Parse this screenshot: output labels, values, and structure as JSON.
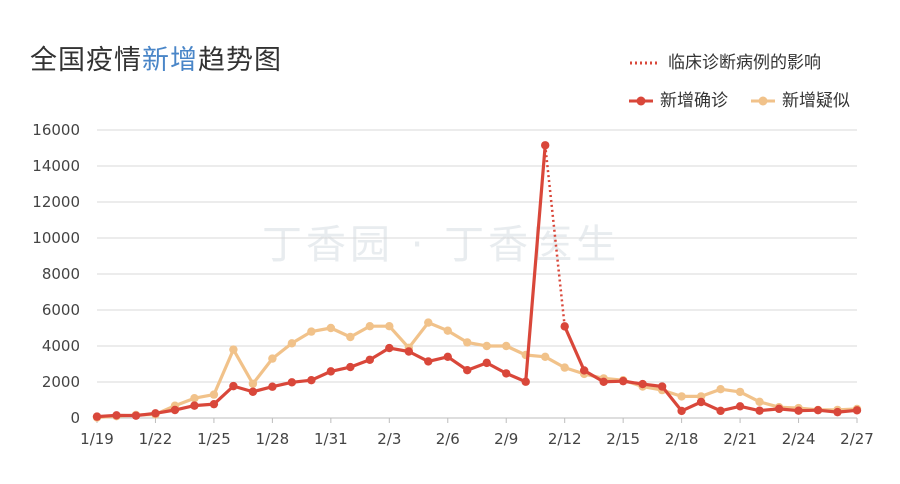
{
  "title_prefix": "全国疫情",
  "title_highlight": "新增",
  "title_suffix": "趋势图",
  "watermark": "丁香园 · 丁香医生",
  "colors": {
    "confirmed": "#d9473a",
    "suspected": "#f1c28a",
    "annotation": "#d9473a",
    "grid": "#d8d8d8",
    "title_highlight": "#4a86c8"
  },
  "chart_data": {
    "type": "line",
    "title": "全国疫情新增趋势图",
    "ylim": [
      0,
      16000
    ],
    "y_ticks": [
      "0",
      "2000",
      "4000",
      "6000",
      "8000",
      "10000",
      "12000",
      "14000",
      "16000"
    ],
    "x": [
      "1/19",
      "1/20",
      "1/21",
      "1/22",
      "1/23",
      "1/24",
      "1/25",
      "1/26",
      "1/27",
      "1/28",
      "1/29",
      "1/30",
      "1/31",
      "2/1",
      "2/2",
      "2/3",
      "2/4",
      "2/5",
      "2/6",
      "2/7",
      "2/8",
      "2/9",
      "2/10",
      "2/11",
      "2/12",
      "2/13",
      "2/14",
      "2/15",
      "2/16",
      "2/17",
      "2/18",
      "2/19",
      "2/20",
      "2/21",
      "2/22",
      "2/23",
      "2/24",
      "2/25",
      "2/26",
      "2/27"
    ],
    "x_tick_labels": [
      "1/19",
      "1/22",
      "1/25",
      "1/28",
      "1/31",
      "2/3",
      "2/6",
      "2/9",
      "2/12",
      "2/15",
      "2/18",
      "2/21",
      "2/24",
      "2/27"
    ],
    "legend_placement": "top-right",
    "series": [
      {
        "name": "新增确诊",
        "values": [
          77,
          149,
          131,
          259,
          444,
          688,
          769,
          1771,
          1459,
          1737,
          1982,
          2102,
          2590,
          2829,
          3235,
          3887,
          3694,
          3143,
          3399,
          2656,
          3062,
          2478,
          2015,
          15152,
          5090,
          2641,
          2009,
          2048,
          1886,
          1749,
          394,
          889,
          397,
          648,
          409,
          508,
          406,
          433,
          327,
          427
        ]
      },
      {
        "name": "新增疑似",
        "values": [
          27,
          100,
          167,
          200,
          680,
          1100,
          1300,
          3800,
          1900,
          3300,
          4150,
          4800,
          5000,
          4500,
          5100,
          5100,
          3900,
          5300,
          4850,
          4200,
          4000,
          4000,
          3500,
          3400,
          2800,
          2450,
          2200,
          2100,
          1750,
          1550,
          1200,
          1200,
          1600,
          1450,
          900,
          600,
          550,
          450,
          450,
          500
        ]
      }
    ],
    "annotation": {
      "name": "临床诊断病例的影响",
      "from": "2/11",
      "to": "2/12",
      "style": "dotted"
    }
  }
}
